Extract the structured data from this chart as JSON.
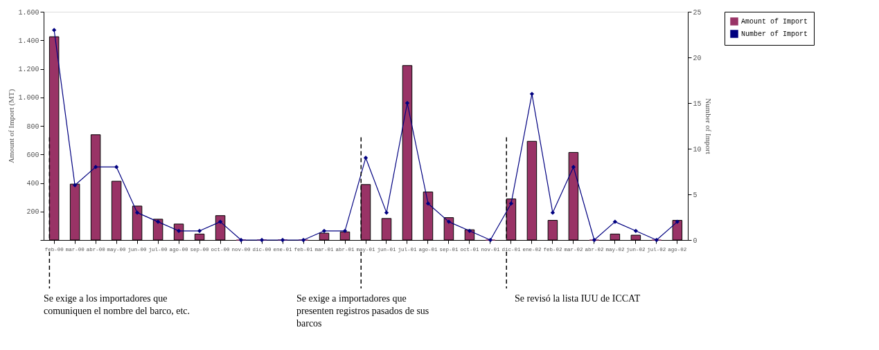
{
  "chart_data": {
    "type": "bar",
    "ylabel": "Amount of Import (MT)",
    "y2label": "Number of Import",
    "categories": [
      "feb-00",
      "mar-00",
      "abr-00",
      "may-00",
      "jun-00",
      "jul-00",
      "ago-00",
      "sep-00",
      "oct-00",
      "nov-00",
      "dic-00",
      "ene-01",
      "feb-01",
      "mar-01",
      "abr-01",
      "may-01",
      "jun-01",
      "jul-01",
      "ago-01",
      "sep-01",
      "oct-01",
      "nov-01",
      "dic-01",
      "ene-02",
      "feb-02",
      "mar-02",
      "abr-02",
      "may-02",
      "jun-02",
      "jul-02",
      "ago-02"
    ],
    "series": [
      {
        "name": "Amount of Import",
        "color": "#993366",
        "values": [
          1425,
          392,
          738,
          412,
          238,
          146,
          112,
          42,
          171,
          0,
          0,
          0,
          0,
          48,
          57,
          389,
          151,
          1223,
          337,
          157,
          72,
          0,
          288,
          692,
          138,
          614,
          0,
          42,
          34,
          0,
          138
        ]
      },
      {
        "name": "Number of Import",
        "type": "line",
        "axis": "y2",
        "color": "#000080",
        "marker": "diamond",
        "line_style": "solid",
        "values": [
          23,
          6,
          8,
          8,
          3,
          2,
          1,
          1,
          2,
          0,
          0,
          0,
          0,
          1,
          1,
          9,
          3,
          15,
          4,
          2,
          1,
          0,
          4,
          16,
          3,
          8,
          0,
          2,
          1,
          0,
          2
        ]
      }
    ],
    "ylim": [
      0,
      1600
    ],
    "yticks": [
      {
        "value": 0,
        "label": null
      },
      {
        "value": 200,
        "label": "200"
      },
      {
        "value": 400,
        "label": "400"
      },
      {
        "value": 600,
        "label": "600"
      },
      {
        "value": 800,
        "label": "800"
      },
      {
        "value": 1000,
        "label": "1.000"
      },
      {
        "value": 1200,
        "label": "1.200"
      },
      {
        "value": 1400,
        "label": "1.400"
      },
      {
        "value": 1600,
        "label": "1.600"
      }
    ],
    "y2lim": [
      0,
      25
    ],
    "y2ticks": [
      0,
      5,
      10,
      15,
      20,
      25
    ],
    "grid": false,
    "legend": "right",
    "ref_lines": [
      {
        "axis": "x",
        "value": "feb-00",
        "line_style": "dashed",
        "color": "#000000"
      },
      {
        "axis": "x",
        "value": "may-01",
        "line_style": "dashed",
        "color": "#000000"
      },
      {
        "axis": "x",
        "value": "dic-01",
        "line_style": "dashed",
        "color": "#000000"
      }
    ],
    "annotations": [
      "Se exige a los importadores que comuniquen el nombre del barco, etc.",
      "Se exige a importadores que presenten registros pasados de sus barcos",
      "Se revisó la lista IUU de ICCAT"
    ]
  }
}
